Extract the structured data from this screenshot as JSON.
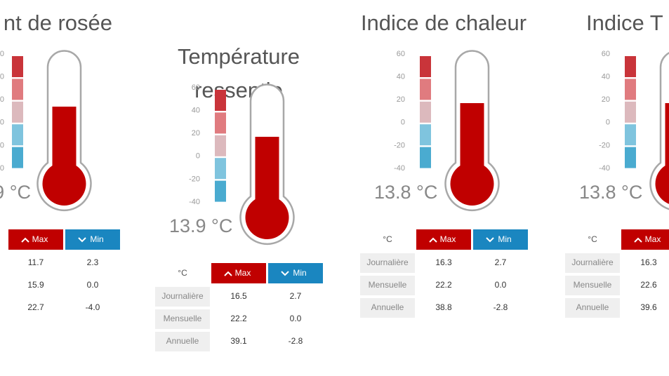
{
  "panels": [
    {
      "title": [
        "nt de rosée"
      ],
      "scale": [
        "0",
        "0",
        "0",
        "0",
        "0",
        "0"
      ],
      "reading": "9 °C",
      "table": {
        "header": [
          "Max",
          "Min"
        ],
        "rows": [
          [
            "11.7",
            "2.3"
          ],
          [
            "15.9",
            "0.0"
          ],
          [
            "22.7",
            "-4.0"
          ]
        ]
      }
    },
    {
      "title": [
        "Température",
        "ressentie"
      ],
      "scale": [
        "60",
        "40",
        "20",
        "0",
        "-20",
        "-40"
      ],
      "reading": "13.9 °C",
      "table": {
        "header": [
          "°C",
          "Max",
          "Min"
        ],
        "rows": [
          [
            "Journalière",
            "16.5",
            "2.7"
          ],
          [
            "Mensuelle",
            "22.2",
            "0.0"
          ],
          [
            "Annuelle",
            "39.1",
            "-2.8"
          ]
        ]
      }
    },
    {
      "title": [
        "Indice de chaleur"
      ],
      "scale": [
        "60",
        "40",
        "20",
        "0",
        "-20",
        "-40"
      ],
      "reading": "13.8 °C",
      "table": {
        "header": [
          "°C",
          "Max",
          "Min"
        ],
        "rows": [
          [
            "Journalière",
            "16.3",
            "2.7"
          ],
          [
            "Mensuelle",
            "22.2",
            "0.0"
          ],
          [
            "Annuelle",
            "38.8",
            "-2.8"
          ]
        ]
      }
    },
    {
      "title": [
        "Indice T"
      ],
      "scale": [
        "60",
        "40",
        "20",
        "0",
        "-20",
        "-40"
      ],
      "reading": "13.8 °C",
      "table": {
        "header": [
          "°C",
          "Max"
        ],
        "rows": [
          [
            "Journalière",
            "16.3"
          ],
          [
            "Mensuelle",
            "22.6"
          ],
          [
            "Annuelle",
            "39.6"
          ]
        ]
      }
    }
  ]
}
